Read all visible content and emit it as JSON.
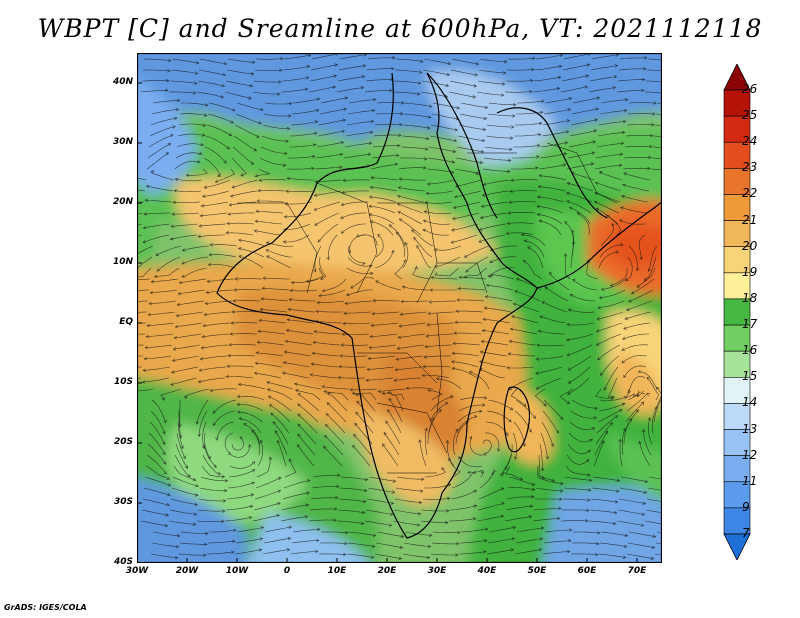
{
  "title": "WBPT [C] and Sreamline at 600hPa, VT: 2021112118",
  "credit": "GrADS: IGES/COLA",
  "map": {
    "lat_range": [
      -40,
      45
    ],
    "lon_range": [
      -30,
      75
    ],
    "lat_labels": [
      {
        "value": 40,
        "text": "40N"
      },
      {
        "value": 30,
        "text": "30N"
      },
      {
        "value": 20,
        "text": "20N"
      },
      {
        "value": 10,
        "text": "10N"
      },
      {
        "value": 0,
        "text": "EQ"
      },
      {
        "value": -10,
        "text": "10S"
      },
      {
        "value": -20,
        "text": "20S"
      },
      {
        "value": -30,
        "text": "30S"
      },
      {
        "value": -40,
        "text": "40S"
      }
    ],
    "lon_labels": [
      {
        "value": -30,
        "text": "30W"
      },
      {
        "value": -20,
        "text": "20W"
      },
      {
        "value": -10,
        "text": "10W"
      },
      {
        "value": 0,
        "text": "0"
      },
      {
        "value": 10,
        "text": "10E"
      },
      {
        "value": 20,
        "text": "20E"
      },
      {
        "value": 30,
        "text": "30E"
      },
      {
        "value": 40,
        "text": "40E"
      },
      {
        "value": 50,
        "text": "50E"
      },
      {
        "value": 60,
        "text": "60E"
      },
      {
        "value": 70,
        "text": "70E"
      }
    ]
  },
  "colorbar": {
    "levels": [
      "7",
      "9",
      "11",
      "12",
      "13",
      "14",
      "15",
      "16",
      "17",
      "18",
      "19",
      "20",
      "21",
      "22",
      "23",
      "24",
      "25",
      "26"
    ],
    "colors": [
      "#1e6fd6",
      "#3d86e6",
      "#5b9bec",
      "#7aaef0",
      "#99c3f5",
      "#bcd9f8",
      "#e1f3f6",
      "#a8e39c",
      "#72d062",
      "#44b840",
      "#fff09a",
      "#f8d479",
      "#f2b65a",
      "#ee9a3b",
      "#e9742b",
      "#e44e1e",
      "#d22a12",
      "#b51208",
      "#8c0404"
    ]
  }
}
